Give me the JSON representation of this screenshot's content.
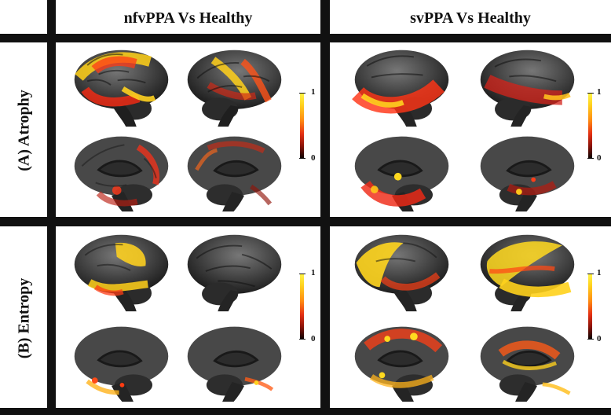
{
  "columns": [
    {
      "title": "nfvPPA Vs Healthy"
    },
    {
      "title": "svPPA Vs Healthy"
    }
  ],
  "rows": [
    {
      "label": "(A) Atrophy"
    },
    {
      "label": "(B) Entropy"
    }
  ],
  "colorbar": {
    "max_label": "1",
    "min_label": "0",
    "colors": [
      "#fff64a",
      "#ffd21f",
      "#ff8a12",
      "#e53114",
      "#8e1408",
      "#080201"
    ]
  },
  "panels": [
    {
      "row": "atrophy",
      "group": "nfvPPA",
      "views": [
        "left-lateral",
        "right-lateral",
        "left-medial",
        "right-medial"
      ]
    },
    {
      "row": "atrophy",
      "group": "svPPA",
      "views": [
        "left-lateral",
        "right-lateral",
        "left-medial",
        "right-medial"
      ]
    },
    {
      "row": "entropy",
      "group": "nfvPPA",
      "views": [
        "left-lateral",
        "right-lateral",
        "left-medial",
        "right-medial"
      ]
    },
    {
      "row": "entropy",
      "group": "svPPA",
      "views": [
        "left-lateral",
        "right-lateral",
        "left-medial",
        "right-medial"
      ]
    }
  ]
}
